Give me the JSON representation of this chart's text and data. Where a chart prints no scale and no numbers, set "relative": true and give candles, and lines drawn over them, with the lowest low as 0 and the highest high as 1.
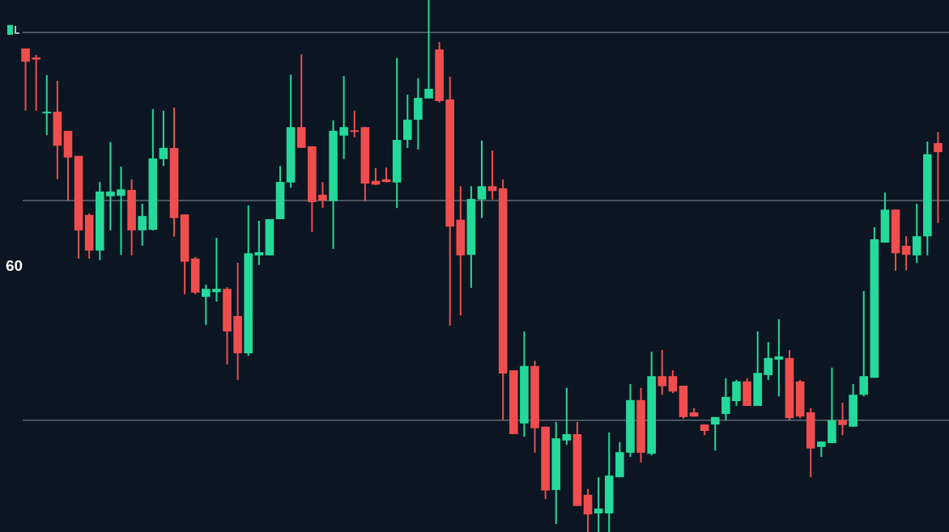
{
  "chart_data": {
    "type": "candlestick",
    "relative": true,
    "categories": [
      null,
      null,
      null,
      null,
      null,
      null,
      null,
      null,
      null,
      null,
      null,
      null,
      null,
      null,
      null,
      null,
      null,
      null,
      null,
      null,
      null,
      null,
      null,
      null,
      null,
      null,
      null,
      null,
      null,
      null,
      null,
      null,
      null,
      null,
      null,
      null,
      null,
      null,
      null,
      null,
      null,
      null,
      null,
      null,
      null,
      null,
      null,
      null,
      null,
      null,
      null,
      null,
      null,
      null,
      null,
      null,
      null,
      null,
      null,
      null,
      null,
      null,
      null,
      null,
      null,
      null,
      null,
      null,
      null,
      null,
      null,
      null,
      null,
      null,
      null,
      null,
      null,
      null,
      null,
      null,
      null,
      null,
      null,
      null,
      null,
      null,
      null
    ],
    "ohlc": [
      [
        0.909,
        0.909,
        0.792,
        0.884
      ],
      [
        0.892,
        0.897,
        0.792,
        0.888
      ],
      [
        0.787,
        0.859,
        0.746,
        0.79
      ],
      [
        0.79,
        0.848,
        0.663,
        0.726
      ],
      [
        0.754,
        0.754,
        0.623,
        0.704
      ],
      [
        0.707,
        0.707,
        0.514,
        0.567
      ],
      [
        0.596,
        0.599,
        0.514,
        0.529
      ],
      [
        0.529,
        0.658,
        0.511,
        0.64
      ],
      [
        0.631,
        0.733,
        0.567,
        0.64
      ],
      [
        0.632,
        0.687,
        0.521,
        0.644
      ],
      [
        0.643,
        0.663,
        0.52,
        0.567
      ],
      [
        0.567,
        0.617,
        0.538,
        0.594
      ],
      [
        0.568,
        0.795,
        0.567,
        0.702
      ],
      [
        0.701,
        0.792,
        0.688,
        0.722
      ],
      [
        0.722,
        0.798,
        0.555,
        0.59
      ],
      [
        0.597,
        0.597,
        0.447,
        0.508
      ],
      [
        0.514,
        0.517,
        0.447,
        0.45
      ],
      [
        0.442,
        0.465,
        0.389,
        0.457
      ],
      [
        0.451,
        0.553,
        0.433,
        0.457
      ],
      [
        0.457,
        0.46,
        0.315,
        0.377
      ],
      [
        0.406,
        0.506,
        0.286,
        0.336
      ],
      [
        0.336,
        0.614,
        0.331,
        0.524
      ],
      [
        0.52,
        0.585,
        0.502,
        0.526
      ],
      [
        0.52,
        0.588,
        0.52,
        0.588
      ],
      [
        0.588,
        0.688,
        0.588,
        0.658
      ],
      [
        0.657,
        0.86,
        0.647,
        0.761
      ],
      [
        0.761,
        0.898,
        0.722,
        0.722
      ],
      [
        0.725,
        0.725,
        0.564,
        0.62
      ],
      [
        0.634,
        0.658,
        0.609,
        0.623
      ],
      [
        0.622,
        0.774,
        0.532,
        0.754
      ],
      [
        0.745,
        0.857,
        0.701,
        0.761
      ],
      [
        0.755,
        0.792,
        0.742,
        0.752
      ],
      [
        0.761,
        0.761,
        0.622,
        0.655
      ],
      [
        0.66,
        0.684,
        0.652,
        0.653
      ],
      [
        0.663,
        0.685,
        0.657,
        0.658
      ],
      [
        0.657,
        0.891,
        0.609,
        0.737
      ],
      [
        0.737,
        0.822,
        0.722,
        0.775
      ],
      [
        0.775,
        0.853,
        0.719,
        0.816
      ],
      [
        0.815,
        1,
        0.815,
        0.833
      ],
      [
        0.907,
        0.921,
        0.807,
        0.81
      ],
      [
        0.813,
        0.856,
        0.388,
        0.574
      ],
      [
        0.587,
        0.65,
        0.407,
        0.52
      ],
      [
        0.521,
        0.65,
        0.459,
        0.626
      ],
      [
        0.625,
        0.736,
        0.59,
        0.65
      ],
      [
        0.65,
        0.717,
        0.625,
        0.641
      ],
      [
        0.646,
        0.663,
        0.21,
        0.298
      ],
      [
        0.304,
        0.304,
        0.184,
        0.184
      ],
      [
        0.204,
        0.377,
        0.179,
        0.312
      ],
      [
        0.312,
        0.322,
        0.149,
        0.195
      ],
      [
        0.198,
        0.198,
        0.062,
        0.078
      ],
      [
        0.079,
        0.207,
        0.015,
        0.176
      ],
      [
        0.172,
        0.271,
        0.164,
        0.184
      ],
      [
        0.184,
        0.207,
        0.049,
        0.049
      ],
      [
        0.07,
        0.081,
        0,
        0.033
      ],
      [
        0.035,
        0.103,
        0,
        0.044
      ],
      [
        0.035,
        0.187,
        0,
        0.106
      ],
      [
        0.103,
        0.169,
        0.103,
        0.15
      ],
      [
        0.149,
        0.278,
        0.141,
        0.248
      ],
      [
        0.248,
        0.271,
        0.131,
        0.149
      ],
      [
        0.147,
        0.339,
        0.144,
        0.293
      ],
      [
        0.293,
        0.342,
        0.258,
        0.274
      ],
      [
        0.293,
        0.304,
        0.261,
        0.264
      ],
      [
        0.275,
        0.275,
        0.213,
        0.216
      ],
      [
        0.225,
        0.233,
        0.217,
        0.217
      ],
      [
        0.202,
        0.202,
        0.182,
        0.19
      ],
      [
        0.202,
        0.216,
        0.153,
        0.216
      ],
      [
        0.222,
        0.289,
        0.21,
        0.254
      ],
      [
        0.246,
        0.286,
        0.237,
        0.283
      ],
      [
        0.283,
        0.289,
        0.237,
        0.237
      ],
      [
        0.237,
        0.377,
        0.237,
        0.299
      ],
      [
        0.295,
        0.357,
        0.286,
        0.327
      ],
      [
        0.324,
        0.4,
        0.255,
        0.33
      ],
      [
        0.327,
        0.342,
        0.21,
        0.214
      ],
      [
        0.283,
        0.286,
        0.214,
        0.217
      ],
      [
        0.225,
        0.233,
        0.103,
        0.157
      ],
      [
        0.16,
        0.17,
        0.141,
        0.17
      ],
      [
        0.167,
        0.309,
        0.167,
        0.21
      ],
      [
        0.21,
        0.243,
        0.182,
        0.201
      ],
      [
        0.198,
        0.278,
        0.198,
        0.258
      ],
      [
        0.258,
        0.453,
        0.255,
        0.293
      ],
      [
        0.29,
        0.573,
        0.29,
        0.55
      ],
      [
        0.544,
        0.638,
        0.544,
        0.606
      ],
      [
        0.606,
        0.606,
        0.491,
        0.524
      ],
      [
        0.538,
        0.556,
        0.492,
        0.521
      ],
      [
        0.52,
        0.617,
        0.506,
        0.556
      ],
      [
        0.556,
        0.734,
        0.52,
        0.71
      ],
      [
        0.731,
        0.752,
        0.581,
        0.714
      ]
    ],
    "colors": [
      "#f04e4e",
      "#f04e4e",
      "#25d99a",
      "#f04e4e",
      "#f04e4e",
      "#f04e4e",
      "#f04e4e",
      "#25d99a",
      "#25d99a",
      "#25d99a",
      "#f04e4e",
      "#25d99a",
      "#25d99a",
      "#25d99a",
      "#f04e4e",
      "#f04e4e",
      "#f04e4e",
      "#25d99a",
      "#25d99a",
      "#f04e4e",
      "#f04e4e",
      "#25d99a",
      "#25d99a",
      "#25d99a",
      "#25d99a",
      "#25d99a",
      "#f04e4e",
      "#f04e4e",
      "#f04e4e",
      "#25d99a",
      "#25d99a",
      "#f04e4e",
      "#f04e4e",
      "#f04e4e",
      "#f04e4e",
      "#25d99a",
      "#25d99a",
      "#25d99a",
      "#25d99a",
      "#f04e4e",
      "#f04e4e",
      "#f04e4e",
      "#25d99a",
      "#25d99a",
      "#f04e4e",
      "#f04e4e",
      "#f04e4e",
      "#25d99a",
      "#f04e4e",
      "#f04e4e",
      "#25d99a",
      "#25d99a",
      "#f04e4e",
      "#f04e4e",
      "#25d99a",
      "#25d99a",
      "#25d99a",
      "#25d99a",
      "#f04e4e",
      "#25d99a",
      "#f04e4e",
      "#f04e4e",
      "#f04e4e",
      "#f04e4e",
      "#f04e4e",
      "#25d99a",
      "#25d99a",
      "#25d99a",
      "#f04e4e",
      "#25d99a",
      "#25d99a",
      "#25d99a",
      "#f04e4e",
      "#f04e4e",
      "#f04e4e",
      "#25d99a",
      "#25d99a",
      "#f04e4e",
      "#25d99a",
      "#25d99a",
      "#25d99a",
      "#25d99a",
      "#f04e4e",
      "#f04e4e",
      "#25d99a",
      "#25d99a",
      "#f04e4e"
    ],
    "ref_lines": [
      {
        "axis": "y",
        "value": 0.939,
        "color": "#8c939c"
      },
      {
        "axis": "y",
        "value": 0.623,
        "color": "#8c939c"
      },
      {
        "axis": "y",
        "value": 0.21,
        "color": "#8c939c"
      }
    ],
    "annotations": [
      "60"
    ],
    "legend": false
  }
}
